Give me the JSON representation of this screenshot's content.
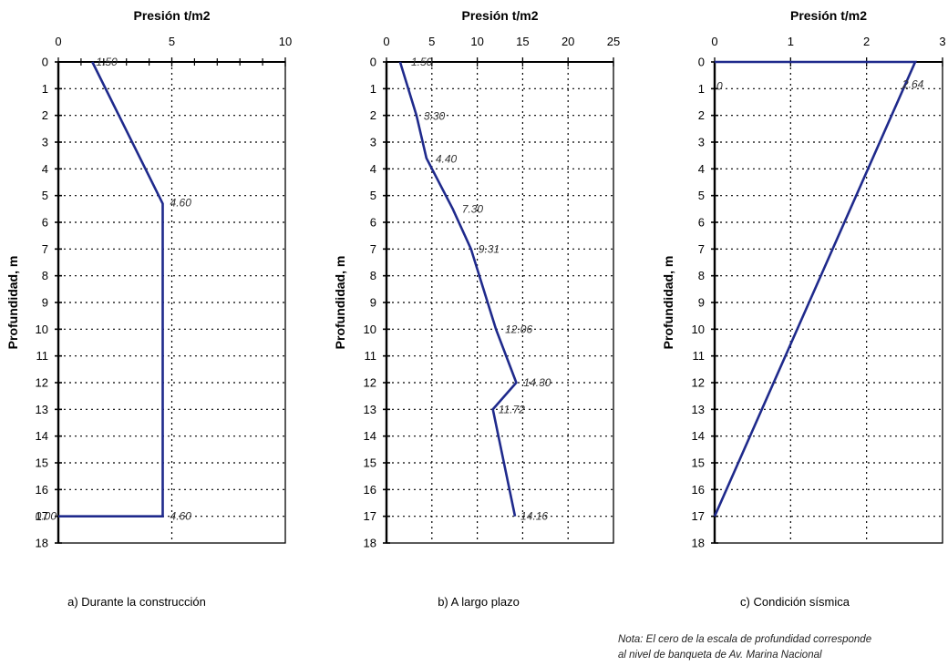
{
  "colors": {
    "line": "#1f2a8c",
    "axis": "#000000",
    "grid": "#000000",
    "text": "#000000",
    "label": "#333333"
  },
  "chart_data": [
    {
      "type": "line",
      "panel_caption": "a) Durante la construcción",
      "title": "Presión t/m2",
      "xlabel": "Presión t/m2",
      "ylabel": "Profundidad, m",
      "xlim": [
        0,
        10
      ],
      "xticks": [
        0,
        5,
        10
      ],
      "xminor": 1,
      "ylim": [
        0,
        18
      ],
      "yticks": [
        0,
        1,
        2,
        3,
        4,
        5,
        6,
        7,
        8,
        9,
        10,
        11,
        12,
        13,
        14,
        15,
        16,
        17,
        18
      ],
      "y_inverted": true,
      "grid": true,
      "series": [
        {
          "x": [
            1.5,
            4.6,
            4.6,
            0.0
          ],
          "y": [
            0,
            5.3,
            17,
            17
          ]
        }
      ],
      "annotations": [
        {
          "text": "1.50",
          "x": 1.5,
          "y": 0
        },
        {
          "text": "4.60",
          "x": 4.6,
          "y": 5.3
        },
        {
          "text": "4.60",
          "x": 4.6,
          "y": 17
        },
        {
          "text": "0.00",
          "x": 0.0,
          "y": 17
        }
      ]
    },
    {
      "type": "line",
      "panel_caption": "b) A largo plazo",
      "title": "Presión t/m2",
      "xlabel": "Presión t/m2",
      "ylabel": "Profundidad, m",
      "xlim": [
        0,
        25
      ],
      "xticks": [
        0,
        5,
        10,
        15,
        20,
        25
      ],
      "xminor": 0,
      "ylim": [
        0,
        18
      ],
      "yticks": [
        0,
        1,
        2,
        3,
        4,
        5,
        6,
        7,
        8,
        9,
        10,
        11,
        12,
        13,
        14,
        15,
        16,
        17,
        18
      ],
      "y_inverted": true,
      "grid": true,
      "series": [
        {
          "x": [
            1.5,
            3.3,
            4.4,
            7.3,
            9.31,
            12.06,
            14.3,
            11.72,
            14.16
          ],
          "y": [
            0,
            2,
            3.6,
            5.5,
            7,
            10,
            12,
            13,
            17
          ]
        }
      ],
      "annotations": [
        {
          "text": "1.50",
          "x": 1.5,
          "y": 0
        },
        {
          "text": "3.30",
          "x": 3.3,
          "y": 2
        },
        {
          "text": "4.40",
          "x": 4.4,
          "y": 3.6
        },
        {
          "text": "7.30",
          "x": 7.3,
          "y": 5.5
        },
        {
          "text": "9.31",
          "x": 9.31,
          "y": 7
        },
        {
          "text": "12.06",
          "x": 12.06,
          "y": 10
        },
        {
          "text": "14.30",
          "x": 14.3,
          "y": 12
        },
        {
          "text": "11.72",
          "x": 11.72,
          "y": 13
        },
        {
          "text": "14.16",
          "x": 14.16,
          "y": 17
        }
      ]
    },
    {
      "type": "line",
      "panel_caption": "c) Condición sísmica",
      "title": "Presión t/m2",
      "xlabel": "Presión t/m2",
      "ylabel": "Profundidad, m",
      "xlim": [
        0,
        3
      ],
      "xticks": [
        0,
        1,
        2,
        3
      ],
      "xminor": 0,
      "ylim": [
        0,
        18
      ],
      "yticks": [
        0,
        1,
        2,
        3,
        4,
        5,
        6,
        7,
        8,
        9,
        10,
        11,
        12,
        13,
        14,
        15,
        16,
        17,
        18
      ],
      "y_inverted": true,
      "grid": true,
      "series": [
        {
          "x": [
            0,
            2.64,
            0
          ],
          "y": [
            0,
            0,
            17
          ]
        }
      ],
      "annotations": [
        {
          "text": "2.64",
          "x": 2.64,
          "y": 0.5
        },
        {
          "text": "0",
          "x": 0,
          "y": 0.5
        }
      ]
    }
  ],
  "note": {
    "line1": "Nota:  El cero de la escala de profundidad corresponde",
    "line2": "al nivel de banqueta de Av. Marina Nacional"
  }
}
